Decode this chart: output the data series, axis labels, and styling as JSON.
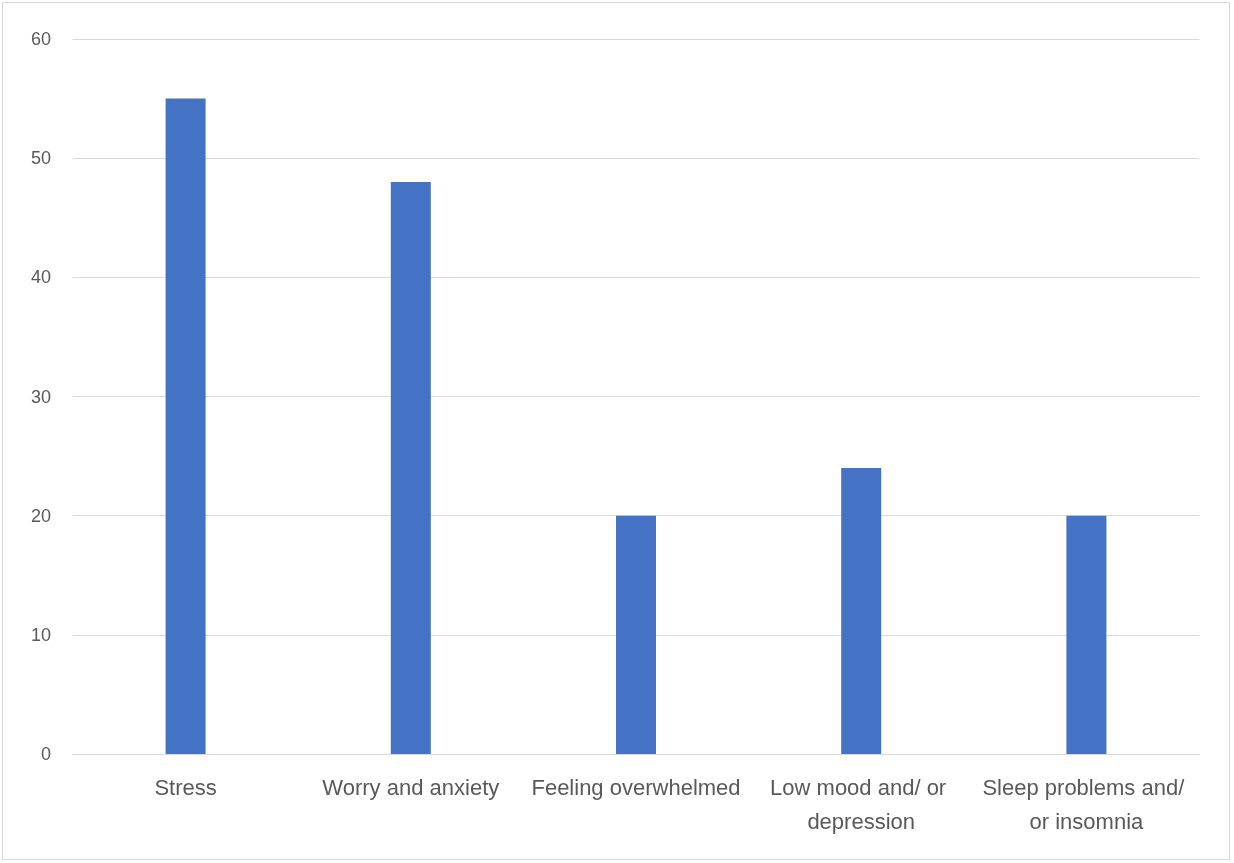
{
  "chart_data": {
    "type": "bar",
    "categories": [
      "Stress",
      "Worry and anxiety",
      "Feeling overwhelmed",
      "Low mood and/ or depression",
      "Sleep problems and/ or insomnia"
    ],
    "values": [
      55,
      48,
      20,
      24,
      20
    ],
    "color": "#4472c4",
    "ylim": [
      0,
      60
    ],
    "yticks": [
      0,
      10,
      20,
      30,
      40,
      50,
      60
    ],
    "grid": "y"
  }
}
